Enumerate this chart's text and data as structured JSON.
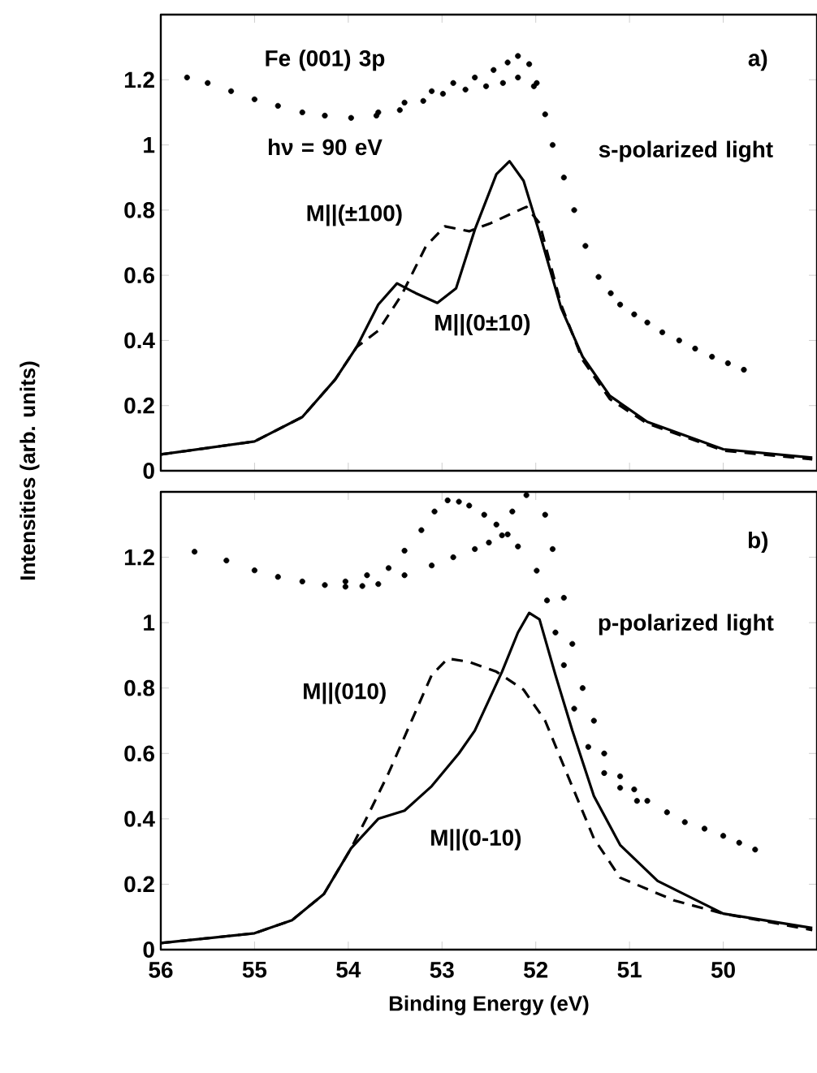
{
  "chart_data": [
    {
      "type": "line",
      "ylabel": "Intensities (arb. units)",
      "xlim": [
        56,
        49
      ],
      "ylim": [
        0,
        1.4
      ],
      "xticks": [
        56,
        55,
        54,
        53,
        52,
        51,
        50
      ],
      "yticks": [
        0,
        0.2,
        0.4,
        0.6,
        0.8,
        1,
        1.2
      ],
      "tick_labels": "y",
      "legend": false,
      "annotations": [
        "Fe (001) 3p",
        "a)",
        "hν = 90 eV",
        "s-polarized light"
      ],
      "series": [
        {
          "name": "M||(±100)",
          "type": "line",
          "marker": "none",
          "line_style": "dashed",
          "color": "#000000",
          "x": [
            56,
            55,
            54.49,
            54.14,
            53.91,
            53.68,
            53.43,
            53.17,
            52.97,
            52.71,
            52.48,
            52.1,
            51.96,
            51.73,
            51.5,
            51.21,
            50.81,
            50,
            49.05
          ],
          "values": [
            0.05,
            0.09,
            0.165,
            0.28,
            0.38,
            0.43,
            0.54,
            0.69,
            0.75,
            0.735,
            0.76,
            0.81,
            0.76,
            0.51,
            0.34,
            0.22,
            0.145,
            0.062,
            0.035
          ]
        },
        {
          "name": "M||(0±10)",
          "type": "line",
          "marker": "none",
          "line_style": "solid",
          "color": "#000000",
          "x": [
            56,
            55,
            54.49,
            54.14,
            53.91,
            53.68,
            53.48,
            53.28,
            53.05,
            52.85,
            52.65,
            52.42,
            52.28,
            52.13,
            51.96,
            51.73,
            51.5,
            51.21,
            50.81,
            50,
            49.05
          ],
          "values": [
            0.05,
            0.09,
            0.165,
            0.28,
            0.38,
            0.51,
            0.575,
            0.545,
            0.515,
            0.56,
            0.74,
            0.91,
            0.95,
            0.89,
            0.73,
            0.5,
            0.35,
            0.23,
            0.15,
            0.066,
            0.04
          ]
        },
        {
          "type": "scatter",
          "marker": "circle",
          "color": "#000000",
          "x": [
            55.72,
            55.5,
            55.25,
            55,
            54.75,
            54.49,
            54.25,
            53.97,
            53.7,
            53.45,
            53.2,
            52.99,
            52.75,
            52.53,
            52.35,
            52.19,
            52.02,
            51.9,
            51.82,
            51.7,
            51.59,
            51.47,
            51.33,
            51.2,
            51.1,
            50.95,
            50.81,
            50.65,
            50.47,
            50.3,
            50.12,
            49.95,
            49.78
          ],
          "values": [
            1.207,
            1.19,
            1.165,
            1.14,
            1.12,
            1.1,
            1.09,
            1.083,
            1.09,
            1.107,
            1.135,
            1.157,
            1.17,
            1.18,
            1.19,
            1.207,
            1.18,
            1.094,
            1.0,
            0.9,
            0.8,
            0.69,
            0.595,
            0.545,
            0.51,
            0.48,
            0.455,
            0.425,
            0.4,
            0.375,
            0.35,
            0.33,
            0.31
          ]
        },
        {
          "type": "scatter",
          "marker": "circle",
          "color": "#000000",
          "x": [
            53.68,
            53.4,
            53.11,
            52.88,
            52.65,
            52.45,
            52.3,
            52.19,
            52.07,
            51.99
          ],
          "values": [
            1.1,
            1.13,
            1.165,
            1.19,
            1.207,
            1.23,
            1.253,
            1.273,
            1.248,
            1.19
          ]
        }
      ]
    },
    {
      "type": "line",
      "xlabel": "Binding Energy (eV)",
      "xlim": [
        56,
        49
      ],
      "ylim": [
        0,
        1.4
      ],
      "xticks": [
        56,
        55,
        54,
        53,
        52,
        51,
        50
      ],
      "yticks": [
        0,
        0.2,
        0.4,
        0.6,
        0.8,
        1,
        1.2
      ],
      "legend": false,
      "annotations": [
        "b)",
        "p-polarized light"
      ],
      "series": [
        {
          "name": "M||(010)",
          "type": "line",
          "marker": "none",
          "line_style": "dashed",
          "color": "#000000",
          "x": [
            56,
            55,
            54.6,
            54.26,
            53.97,
            53.8,
            53.57,
            53.34,
            53.11,
            52.94,
            52.71,
            52.42,
            52.13,
            51.9,
            51.67,
            51.38,
            51.1,
            50.52,
            50,
            49.05
          ],
          "values": [
            0.02,
            0.05,
            0.09,
            0.17,
            0.31,
            0.405,
            0.54,
            0.69,
            0.84,
            0.89,
            0.88,
            0.85,
            0.795,
            0.7,
            0.54,
            0.34,
            0.22,
            0.15,
            0.11,
            0.06
          ]
        },
        {
          "name": "M||(0-10)",
          "type": "line",
          "marker": "none",
          "line_style": "solid",
          "color": "#000000",
          "x": [
            56,
            55,
            54.6,
            54.26,
            53.97,
            53.68,
            53.4,
            53.11,
            52.82,
            52.65,
            52.36,
            52.19,
            52.07,
            51.96,
            51.79,
            51.61,
            51.38,
            51.1,
            50.7,
            50,
            49.05
          ],
          "values": [
            0.02,
            0.05,
            0.09,
            0.17,
            0.31,
            0.4,
            0.425,
            0.5,
            0.6,
            0.67,
            0.85,
            0.97,
            1.03,
            1.01,
            0.84,
            0.67,
            0.47,
            0.32,
            0.21,
            0.11,
            0.066
          ]
        },
        {
          "type": "scatter",
          "marker": "circle",
          "color": "#000000",
          "x": [
            55.64,
            55.3,
            55,
            54.75,
            54.49,
            54.25,
            54.03,
            53.85,
            53.68,
            53.4,
            53.11,
            52.88,
            52.65,
            52.5,
            52.36,
            52.25,
            52.1,
            51.9,
            51.82,
            51.7,
            51.61,
            51.5,
            51.38,
            51.27,
            51.1,
            50.95,
            50.81,
            50.6,
            50.41,
            50.2,
            50,
            49.83,
            49.66
          ],
          "values": [
            1.217,
            1.19,
            1.16,
            1.14,
            1.126,
            1.115,
            1.11,
            1.112,
            1.118,
            1.145,
            1.175,
            1.2,
            1.225,
            1.245,
            1.267,
            1.34,
            1.39,
            1.33,
            1.225,
            1.076,
            0.935,
            0.8,
            0.7,
            0.6,
            0.53,
            0.49,
            0.455,
            0.42,
            0.39,
            0.37,
            0.348,
            0.327,
            0.306
          ]
        },
        {
          "type": "scatter",
          "marker": "circle",
          "color": "#000000",
          "x": [
            54.03,
            53.8,
            53.57,
            53.4,
            53.22,
            53.08,
            52.94,
            52.82,
            52.71,
            52.55,
            52.42,
            52.3,
            52.19,
            51.99,
            51.88,
            51.79,
            51.7,
            51.59,
            51.44,
            51.27,
            51.1,
            50.92
          ],
          "values": [
            1.126,
            1.145,
            1.167,
            1.22,
            1.283,
            1.34,
            1.374,
            1.37,
            1.358,
            1.33,
            1.3,
            1.27,
            1.233,
            1.159,
            1.068,
            0.97,
            0.87,
            0.737,
            0.62,
            0.54,
            0.495,
            0.455
          ]
        }
      ]
    }
  ]
}
